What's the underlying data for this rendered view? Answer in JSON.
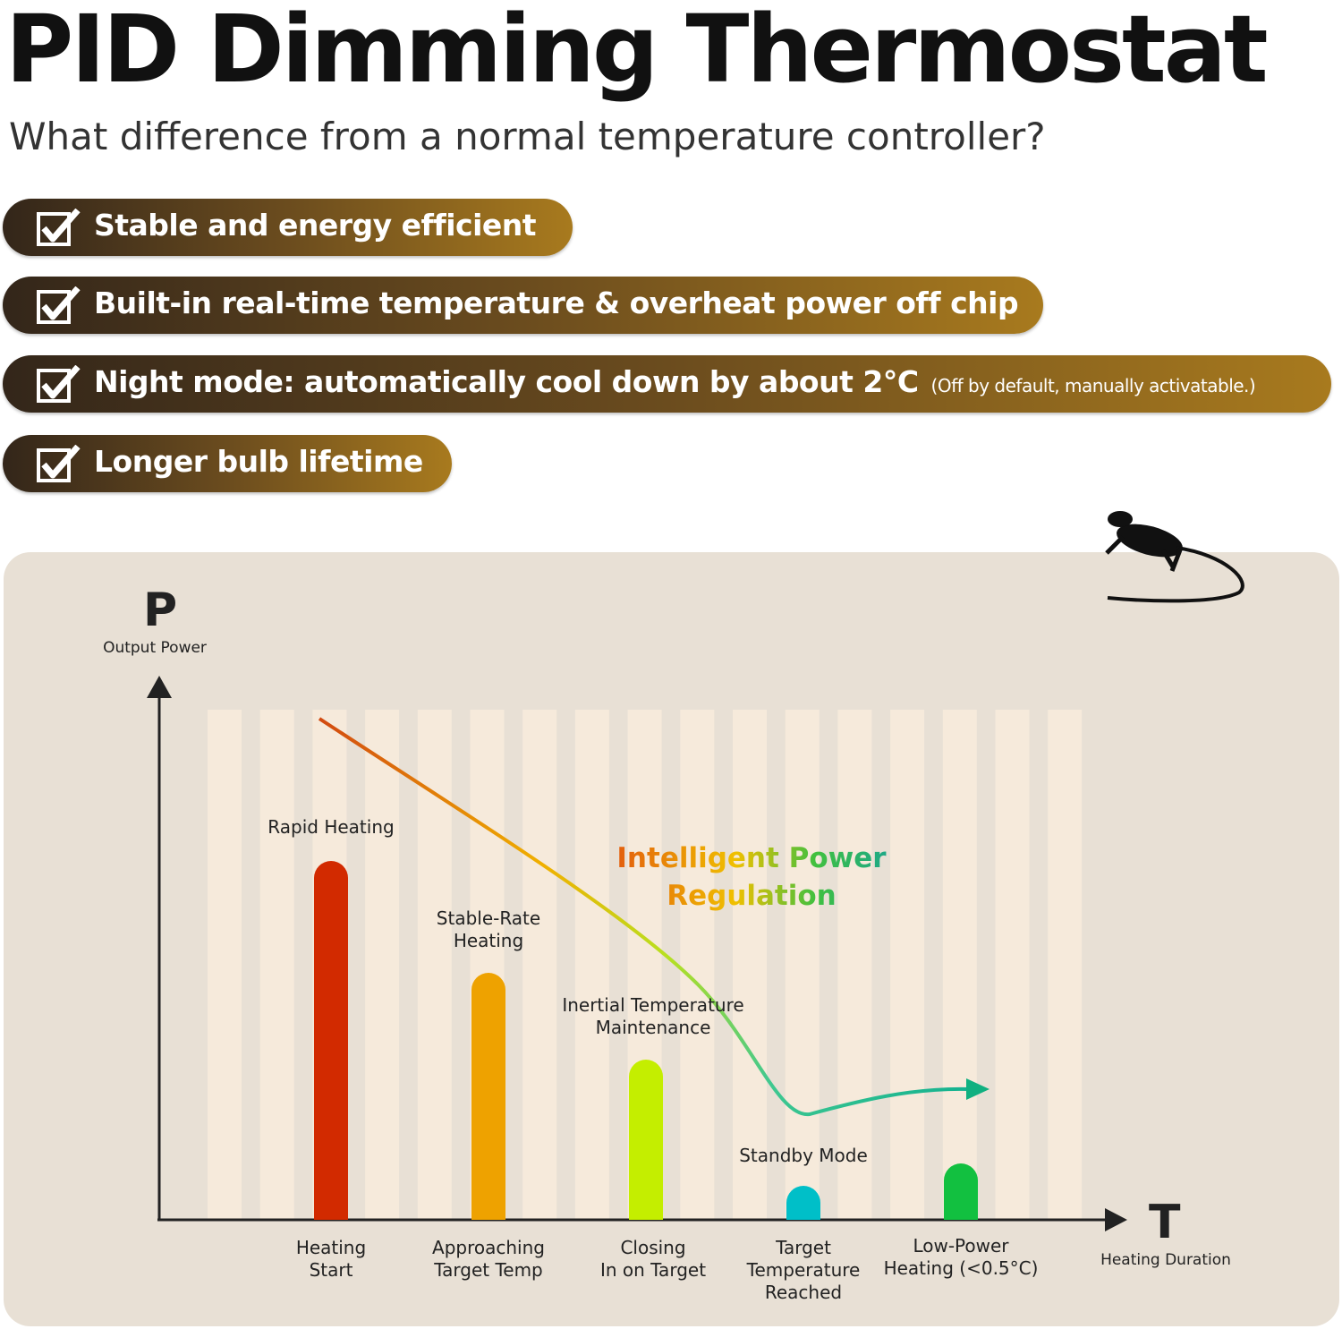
{
  "header": {
    "title": "PID Dimming Thermostat",
    "subtitle": "What difference from a normal temperature controller?"
  },
  "features": [
    {
      "text": "Stable and energy efficient"
    },
    {
      "text": "Built-in real-time temperature & overheat power off chip"
    },
    {
      "text": "Night mode: automatically cool down by about 2°C",
      "note": "(Off by default, manually activatable.)"
    },
    {
      "text": "Longer bulb lifetime"
    }
  ],
  "diagram": {
    "y_axis": {
      "symbol": "P",
      "label": "Output Power"
    },
    "x_axis": {
      "symbol": "T",
      "label": "Heating Duration"
    },
    "curve_label": "Intelligent Power\nRegulation",
    "stages": [
      {
        "label": "Rapid Heating",
        "category": "Heating\nStart"
      },
      {
        "label": "Stable-Rate\nHeating",
        "category": "Approaching\nTarget Temp"
      },
      {
        "label": "Inertial Temperature\nMaintenance",
        "category": "Closing\nIn on Target"
      },
      {
        "label": "Standby Mode",
        "category": "Target\nTemperature\nReached"
      },
      {
        "label": null,
        "category": "Low-Power\nHeating (<0.5°C)"
      }
    ]
  }
}
